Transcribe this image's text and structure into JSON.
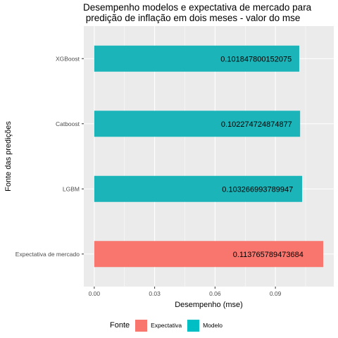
{
  "chart_data": {
    "type": "bar",
    "orientation": "horizontal",
    "title_lines": [
      "Desempenho modelos e expectativa de mercado para",
      " predição de inflação em dois meses - valor do mse"
    ],
    "xlabel": "Desempenho (mse)",
    "ylabel": "Fonte das predições",
    "xlim": [
      -0.0052,
      0.119
    ],
    "x_ticks": [
      0.0,
      0.03,
      0.06,
      0.09
    ],
    "x_tick_labels": [
      "0.00",
      "0.03",
      "0.06",
      "0.09"
    ],
    "grid": true,
    "categories": [
      "XGBoost",
      "Catboost",
      "LGBM",
      "Expectativa de mercado"
    ],
    "values": [
      0.101847800152075,
      0.102274724874877,
      0.103266993789947,
      0.113765789473684
    ],
    "data_labels": [
      "0.101847800152075",
      "0.102274724874877",
      "0.103266993789947",
      "0.113765789473684"
    ],
    "fill_groups": [
      "Modelo",
      "Modelo",
      "Modelo",
      "Expectativa"
    ],
    "legend": {
      "title": "Fonte",
      "position": "bottom",
      "items": [
        {
          "label": "Expectativa",
          "color": "#F8766D"
        },
        {
          "label": "Modelo",
          "color": "#00BFC4"
        }
      ]
    },
    "colors": {
      "Expectativa": "#F8766D",
      "Modelo": "#1BB5B9",
      "panel": "#EBEBEB",
      "grid": "#FFFFFF"
    }
  }
}
